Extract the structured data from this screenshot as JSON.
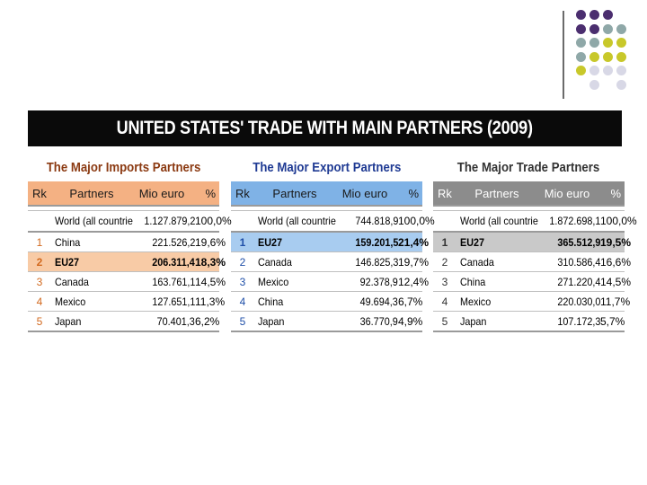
{
  "banner": {
    "title": "UNITED STATES' TRADE WITH MAIN PARTNERS (2009)"
  },
  "colors": {
    "imports_title": "#8b3a12",
    "imports_header": "#f4b183",
    "imports_highlight": "#f8cba6",
    "imports_rank": "#d2691e",
    "exports_title": "#1f3a93",
    "exports_header": "#7fb2e6",
    "exports_highlight": "#a8ccf0",
    "exports_rank": "#1f4fa8",
    "trade_title": "#333333",
    "trade_header": "#8c8c8c",
    "trade_highlight": "#c9c9c9",
    "trade_rank": "#333333"
  },
  "tables": [
    {
      "title": "The Major Imports Partners",
      "headers": {
        "rank": "Rk",
        "partner": "Partners",
        "value": "Mio euro",
        "pct": "%"
      },
      "world": {
        "partner": "World (all countrie",
        "value": "1.127.879,2",
        "pct": "100,0%"
      },
      "rows": [
        {
          "rank": "1",
          "partner": "China",
          "value": "221.526,2",
          "pct": "19,6%",
          "highlight": false
        },
        {
          "rank": "2",
          "partner": "EU27",
          "value": "206.311,4",
          "pct": "18,3%",
          "highlight": true
        },
        {
          "rank": "3",
          "partner": "Canada",
          "value": "163.761,1",
          "pct": "14,5%",
          "highlight": false
        },
        {
          "rank": "4",
          "partner": "Mexico",
          "value": "127.651,1",
          "pct": "11,3%",
          "highlight": false
        },
        {
          "rank": "5",
          "partner": "Japan",
          "value": "70.401,3",
          "pct": "6,2%",
          "highlight": false
        }
      ]
    },
    {
      "title": "The Major Export Partners",
      "headers": {
        "rank": "Rk",
        "partner": "Partners",
        "value": "Mio euro",
        "pct": "%"
      },
      "world": {
        "partner": "World (all countrie",
        "value": "744.818,9",
        "pct": "100,0%"
      },
      "rows": [
        {
          "rank": "1",
          "partner": "EU27",
          "value": "159.201,5",
          "pct": "21,4%",
          "highlight": true
        },
        {
          "rank": "2",
          "partner": "Canada",
          "value": "146.825,3",
          "pct": "19,7%",
          "highlight": false
        },
        {
          "rank": "3",
          "partner": "Mexico",
          "value": "92.378,9",
          "pct": "12,4%",
          "highlight": false
        },
        {
          "rank": "4",
          "partner": "China",
          "value": "49.694,3",
          "pct": "6,7%",
          "highlight": false
        },
        {
          "rank": "5",
          "partner": "Japan",
          "value": "36.770,9",
          "pct": "4,9%",
          "highlight": false
        }
      ]
    },
    {
      "title": "The Major Trade Partners",
      "headers": {
        "rank": "Rk",
        "partner": "Partners",
        "value": "Mio euro",
        "pct": "%"
      },
      "world": {
        "partner": "World (all countrie",
        "value": "1.872.698,1",
        "pct": "100,0%"
      },
      "rows": [
        {
          "rank": "1",
          "partner": "EU27",
          "value": "365.512,9",
          "pct": "19,5%",
          "highlight": true
        },
        {
          "rank": "2",
          "partner": "Canada",
          "value": "310.586,4",
          "pct": "16,6%",
          "highlight": false
        },
        {
          "rank": "3",
          "partner": "China",
          "value": "271.220,4",
          "pct": "14,5%",
          "highlight": false
        },
        {
          "rank": "4",
          "partner": "Mexico",
          "value": "220.030,0",
          "pct": "11,7%",
          "highlight": false
        },
        {
          "rank": "5",
          "partner": "Japan",
          "value": "107.172,3",
          "pct": "5,7%",
          "highlight": false
        }
      ]
    }
  ]
}
